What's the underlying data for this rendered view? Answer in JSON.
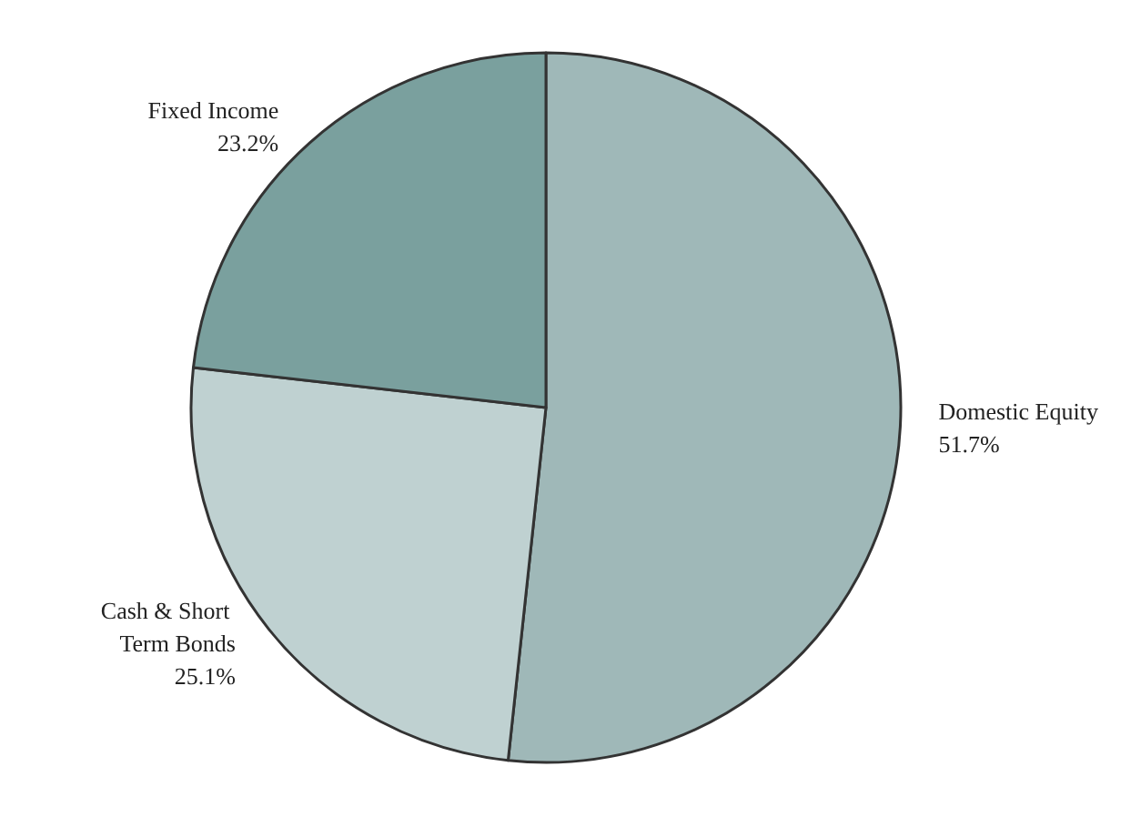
{
  "chart_data": {
    "type": "pie",
    "categories": [
      "Domestic Equity",
      "Cash & Short Term Bonds",
      "Fixed Income"
    ],
    "values": [
      51.7,
      25.1,
      23.2
    ],
    "colors": [
      "#9fb8b8",
      "#bfd1d1",
      "#7aa09e"
    ],
    "value_labels": [
      "51.7%",
      "25.1%",
      "23.2%"
    ],
    "legend": false
  }
}
